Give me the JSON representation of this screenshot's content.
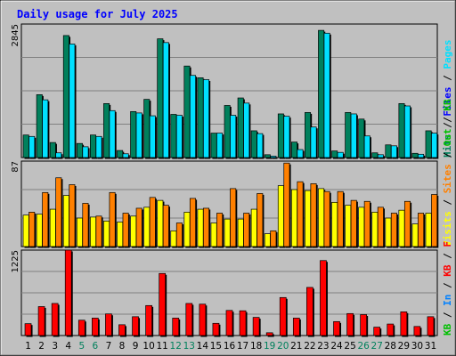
{
  "chart_data": {
    "type": "bar",
    "title": "Daily usage for July 2025",
    "days": [
      "1",
      "2",
      "3",
      "4",
      "5",
      "6",
      "7",
      "8",
      "9",
      "10",
      "11",
      "12",
      "13",
      "14",
      "15",
      "16",
      "17",
      "18",
      "19",
      "20",
      "21",
      "22",
      "23",
      "24",
      "25",
      "26",
      "27",
      "28",
      "29",
      "30",
      "31"
    ],
    "weekend_days": [
      "5",
      "6",
      "12",
      "13",
      "19",
      "20",
      "26",
      "27"
    ],
    "colors": {
      "background": "#ffffff",
      "frame": "#c0c0c0",
      "plot": "#c0c0c0",
      "gridline": "#808080",
      "title_text": "#0000ff",
      "weekday_label": "#000000",
      "weekend_label": "#00805c",
      "visits": "#ffff00",
      "sites": "#ff8000",
      "hits": "#00805c",
      "files": "#00c0ff",
      "pages": "#00e0ff",
      "kb_f": "#ff0000",
      "kb_in": "#0080ff",
      "kb_out": "#00c000"
    },
    "panels": [
      {
        "id": "top",
        "ymax": 2845,
        "ytick_label": "2845",
        "legend": [
          {
            "text": "Hits",
            "color": "#00805c"
          },
          {
            "text": "Files",
            "color": "#0000ff"
          },
          {
            "text": "Pages",
            "color": "#00e0ff"
          }
        ],
        "series": [
          {
            "name": "Hits",
            "color": "#00805c",
            "values": [
              480,
              1340,
              320,
              2600,
              300,
              480,
              1150,
              150,
              980,
              1240,
              2530,
              920,
              1950,
              1700,
              520,
              1110,
              1270,
              570,
              60,
              930,
              330,
              960,
              2710,
              140,
              960,
              820,
              100,
              270,
              1150,
              90,
              570
            ]
          },
          {
            "name": "Files",
            "color": "#00e0ff",
            "values": [
              450,
              1230,
              100,
              2420,
              230,
              450,
              1000,
              80,
              950,
              890,
              2450,
              900,
              1750,
              1660,
              520,
              900,
              1160,
              510,
              30,
              880,
              170,
              650,
              2650,
              110,
              930,
              460,
              60,
              250,
              1100,
              70,
              520
            ]
          }
        ]
      },
      {
        "id": "middle",
        "ymax": 87,
        "ytick_label": "87",
        "legend": [
          {
            "text": "Visits",
            "color": "#ffff00"
          },
          {
            "text": "Sites",
            "color": "#ff8000"
          },
          {
            "text": "Out",
            "color": "#00c000"
          },
          {
            "text": "KB",
            "color": "#00c000"
          }
        ],
        "series": [
          {
            "name": "Visits",
            "color": "#ffff00",
            "values": [
              32,
              33,
              38,
              52,
              29,
              30,
              26,
              25,
              31,
              40,
              47,
              16,
              35,
              38,
              24,
              28,
              28,
              38,
              13,
              62,
              58,
              57,
              59,
              45,
              42,
              40,
              35,
              29,
              37,
              23,
              34
            ]
          },
          {
            "name": "Sites",
            "color": "#ff8000",
            "values": [
              35,
              55,
              70,
              63,
              44,
              31,
              55,
              34,
              39,
              50,
              42,
              24,
              49,
              39,
              34,
              59,
              34,
              54,
              16,
              85,
              66,
              64,
              56,
              56,
              47,
              46,
              40,
              34,
              46,
              34,
              53
            ]
          }
        ]
      },
      {
        "id": "bottom",
        "ymax": 1225,
        "ytick_label": "1225",
        "legend": [
          {
            "text": "KB",
            "color": "#00c000"
          },
          {
            "text": "In",
            "color": "#0080ff"
          },
          {
            "text": "KB",
            "color": "#ff0000"
          },
          {
            "text": "F",
            "color": "#ff0000"
          }
        ],
        "series": [
          {
            "name": "KB F",
            "color": "#ff0000",
            "values": [
              170,
              415,
              460,
              1225,
              220,
              250,
              310,
              155,
              270,
              430,
              890,
              250,
              460,
              450,
              175,
              360,
              355,
              260,
              40,
              545,
              250,
              690,
              1075,
              200,
              315,
              300,
              120,
              165,
              340,
              130,
              270
            ]
          }
        ]
      }
    ]
  }
}
